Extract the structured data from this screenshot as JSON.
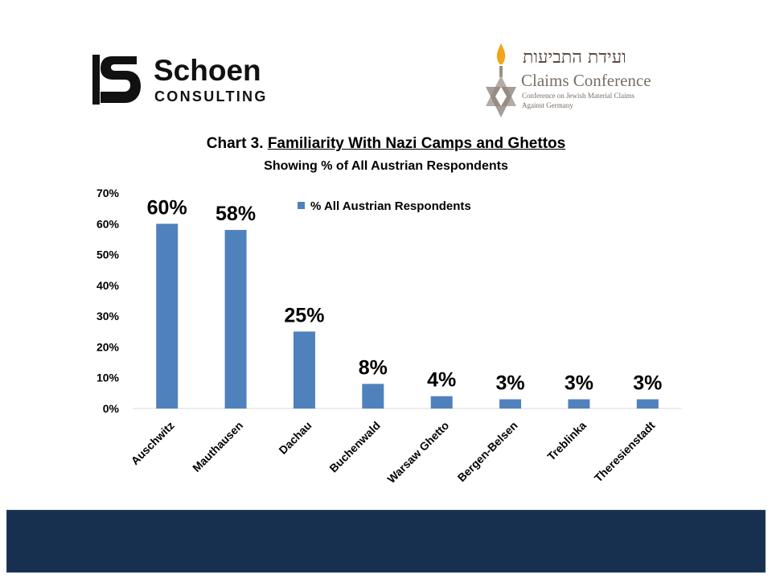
{
  "logos": {
    "schoen": {
      "name": "Schoen",
      "sub": "CONSULTING"
    },
    "claims": {
      "hebrew": "ועידת התביעות",
      "name": "Claims Conference",
      "sub_line1": "Conference on Jewish Material Claims",
      "sub_line2": "Against Germany"
    }
  },
  "chart_data": {
    "type": "bar",
    "title_prefix": "Chart 3. ",
    "title": "Familiarity With Nazi Camps and Ghettos",
    "subtitle": "Showing % of All Austrian Respondents",
    "categories": [
      "Auschwitz",
      "Mauthausen",
      "Dachau",
      "Buchenwald",
      "Warsaw Ghetto",
      "Bergen-Belsen",
      "Treblinka",
      "Theresienstadt"
    ],
    "series": [
      {
        "name": "% All Austrian Respondents",
        "values": [
          60,
          58,
          25,
          8,
          4,
          3,
          3,
          3
        ],
        "color": "#4f81bd"
      }
    ],
    "data_labels": [
      "60%",
      "58%",
      "25%",
      "8%",
      "4%",
      "3%",
      "3%",
      "3%"
    ],
    "ylim": [
      0,
      70
    ],
    "y_ticks": [
      "0%",
      "10%",
      "20%",
      "30%",
      "40%",
      "50%",
      "60%",
      "70%"
    ],
    "grid": false,
    "legend_position": "top-center"
  },
  "colors": {
    "bar": "#4f81bd",
    "footer": "#17304f"
  }
}
